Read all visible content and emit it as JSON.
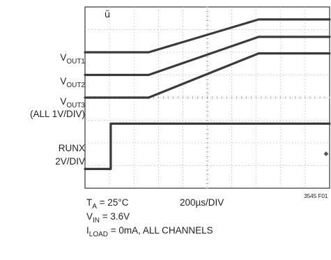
{
  "chart_data": {
    "type": "line",
    "time_scale": "200µs/DIV",
    "x_divisions": 10,
    "y_divisions": 8,
    "grid": true,
    "x_range": [
      0,
      10
    ],
    "y_range": [
      0,
      8
    ],
    "series": [
      {
        "name": "VOUT1",
        "scale": "1V/DIV",
        "x": [
          0,
          1.5,
          2.6,
          7.1,
          10
        ],
        "y": [
          6.0,
          6.0,
          6.0,
          7.45,
          7.45
        ]
      },
      {
        "name": "VOUT2",
        "scale": "1V/DIV",
        "x": [
          0,
          1.5,
          2.6,
          7.1,
          10
        ],
        "y": [
          5.0,
          5.0,
          5.0,
          6.68,
          6.68
        ]
      },
      {
        "name": "VOUT3",
        "scale": "1V/DIV",
        "x": [
          0,
          1.5,
          2.6,
          7.1,
          10
        ],
        "y": [
          4.0,
          4.0,
          4.0,
          5.95,
          5.95
        ]
      },
      {
        "name": "RUNX",
        "scale": "2V/DIV",
        "x": [
          0,
          1.05,
          1.05,
          10
        ],
        "y": [
          0.85,
          0.85,
          2.85,
          2.85
        ]
      }
    ]
  },
  "labels": {
    "vout1_main": "V",
    "vout1_sub": "OUT1",
    "vout2_main": "V",
    "vout2_sub": "OUT2",
    "vout3_main": "V",
    "vout3_sub": "OUT3",
    "all_scale": "(ALL 1V/DIV)",
    "runx": "RUNX",
    "runx_scale": "2V/DIV"
  },
  "conditions": {
    "ta_main": "T",
    "ta_sub": "A",
    "ta_value": " = 25°C",
    "timebase": "200µs/DIV",
    "vin_main": "V",
    "vin_sub": "IN",
    "vin_value": " = 3.6V",
    "iload_main": "I",
    "iload_sub": "LOAD",
    "iload_value": " = 0mA, ALL CHANNELS"
  },
  "figure_id": "3545 F01"
}
